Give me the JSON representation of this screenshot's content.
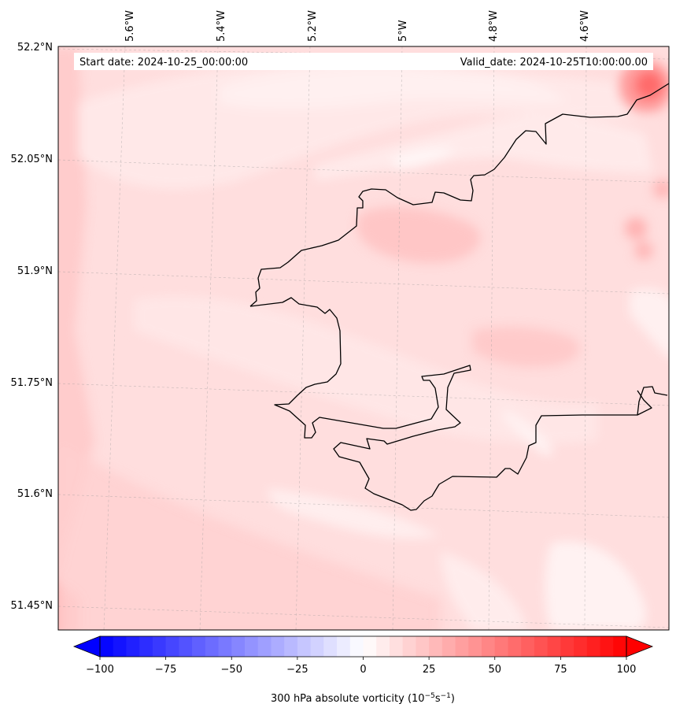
{
  "map": {
    "start_date": "Start date: 2024-10-25_00:00:00",
    "valid_date": "Valid_date: 2024-10-25T10:00:00.00",
    "lon_labels": [
      "5.6°W",
      "5.4°W",
      "5.2°W",
      "5°W",
      "4.8°W",
      "4.6°W"
    ],
    "lat_labels": [
      "52.2°N",
      "52.05°N",
      "51.9°N",
      "51.75°N",
      "51.6°N",
      "51.45°N"
    ]
  },
  "colorbar": {
    "label": "300 hPa absolute vorticity (10",
    "unit_exp1": "−5",
    "unit_mid": "s",
    "unit_exp2": "−1",
    "unit_close": ")",
    "min": -100,
    "max": 100,
    "ticks": [
      "−100",
      "−75",
      "−50",
      "−25",
      "0",
      "25",
      "50",
      "75",
      "100"
    ],
    "colors": {
      "negative_extreme": "#0000ff",
      "neutral": "#ffffff",
      "positive_extreme": "#ff0000"
    },
    "extend": "both"
  },
  "colors": {
    "field_base": "#ffdede",
    "coastline": "#000000",
    "gridline": "#9a9a9a"
  }
}
